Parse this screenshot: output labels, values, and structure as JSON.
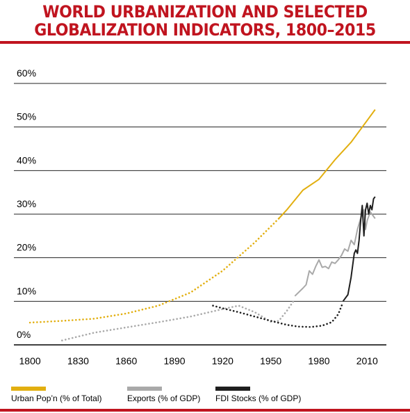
{
  "title_lines": [
    "WORLD URBANIZATION AND SELECTED",
    "GLOBALIZATION INDICATORS, 1800–2015"
  ],
  "colors": {
    "accent": "#c0141f",
    "urban": "#e2af10",
    "exports": "#a9a9a9",
    "fdi": "#1e1e1e"
  },
  "chart_data": {
    "type": "line",
    "title": "WORLD URBANIZATION AND SELECTED GLOBALIZATION INDICATORS, 1800–2015",
    "xlabel": "",
    "ylabel": "",
    "xlim": [
      1790,
      2022
    ],
    "ylim": [
      0,
      60
    ],
    "x_ticks": [
      1800,
      1830,
      1860,
      1890,
      1920,
      1950,
      1980,
      2010
    ],
    "y_ticks": [
      "0%",
      "10%",
      "20%",
      "30%",
      "40%",
      "50%",
      "60%"
    ],
    "y_tick_values": [
      0,
      10,
      20,
      30,
      40,
      50,
      60
    ],
    "grid": "horizontal",
    "legend_position": "bottom",
    "series": [
      {
        "name": "Urban Pop’n (% of Total)",
        "color_key": "urban",
        "segments": [
          {
            "style": "dotted",
            "points": [
              [
                1800,
                5.1
              ],
              [
                1820,
                5.5
              ],
              [
                1840,
                6.0
              ],
              [
                1860,
                7.2
              ],
              [
                1880,
                9.0
              ],
              [
                1900,
                12.0
              ],
              [
                1920,
                17.0
              ],
              [
                1940,
                23.5
              ],
              [
                1955,
                29.0
              ]
            ]
          },
          {
            "style": "solid",
            "points": [
              [
                1955,
                29.0
              ],
              [
                1960,
                31.0
              ],
              [
                1970,
                35.5
              ],
              [
                1980,
                38.0
              ],
              [
                1990,
                42.5
              ],
              [
                2000,
                46.5
              ],
              [
                2010,
                51.5
              ],
              [
                2015,
                54.0
              ]
            ]
          }
        ]
      },
      {
        "name": "Exports (% of GDP)",
        "color_key": "exports",
        "segments": [
          {
            "style": "dotted",
            "points": [
              [
                1820,
                1.0
              ],
              [
                1840,
                2.8
              ],
              [
                1860,
                4.0
              ],
              [
                1880,
                5.2
              ],
              [
                1900,
                6.5
              ],
              [
                1920,
                8.2
              ],
              [
                1930,
                9.0
              ],
              [
                1940,
                7.5
              ],
              [
                1950,
                5.3
              ],
              [
                1955,
                5.5
              ],
              [
                1960,
                7.8
              ],
              [
                1965,
                10.5
              ]
            ]
          },
          {
            "style": "solid",
            "points": [
              [
                1965,
                11.2
              ],
              [
                1970,
                13.0
              ],
              [
                1972,
                13.8
              ],
              [
                1974,
                17.0
              ],
              [
                1976,
                16.2
              ],
              [
                1978,
                18.0
              ],
              [
                1980,
                19.5
              ],
              [
                1982,
                17.8
              ],
              [
                1984,
                18.0
              ],
              [
                1986,
                17.5
              ],
              [
                1988,
                19.0
              ],
              [
                1990,
                18.7
              ],
              [
                1992,
                19.5
              ],
              [
                1994,
                20.5
              ],
              [
                1996,
                22.0
              ],
              [
                1998,
                21.5
              ],
              [
                2000,
                24.0
              ],
              [
                2002,
                23.0
              ],
              [
                2004,
                26.5
              ],
              [
                2006,
                29.0
              ],
              [
                2008,
                31.0
              ],
              [
                2009,
                26.5
              ],
              [
                2010,
                28.5
              ],
              [
                2012,
                30.5
              ],
              [
                2014,
                29.5
              ],
              [
                2015,
                29.0
              ]
            ]
          }
        ]
      },
      {
        "name": "FDI Stocks (% of GDP)",
        "color_key": "fdi",
        "segments": [
          {
            "style": "dotted",
            "points": [
              [
                1914,
                9.0
              ],
              [
                1920,
                8.4
              ],
              [
                1930,
                7.5
              ],
              [
                1940,
                6.5
              ],
              [
                1950,
                5.5
              ],
              [
                1960,
                4.6
              ],
              [
                1967,
                4.2
              ],
              [
                1975,
                4.1
              ],
              [
                1982,
                4.4
              ],
              [
                1988,
                5.2
              ],
              [
                1992,
                7.0
              ],
              [
                1995,
                9.8
              ]
            ]
          },
          {
            "style": "solid",
            "points": [
              [
                1995,
                10.0
              ],
              [
                1998,
                11.5
              ],
              [
                2000,
                15.5
              ],
              [
                2002,
                21.0
              ],
              [
                2003,
                21.8
              ],
              [
                2004,
                21.0
              ],
              [
                2005,
                24.0
              ],
              [
                2006,
                28.5
              ],
              [
                2007,
                32.0
              ],
              [
                2008,
                25.0
              ],
              [
                2009,
                31.0
              ],
              [
                2010,
                32.5
              ],
              [
                2011,
                30.0
              ],
              [
                2012,
                32.0
              ],
              [
                2013,
                31.0
              ],
              [
                2014,
                33.5
              ],
              [
                2015,
                34.0
              ]
            ]
          }
        ]
      }
    ]
  },
  "legend": [
    {
      "label": "Urban Pop’n (% of Total)",
      "color_key": "urban"
    },
    {
      "label": "Exports (% of GDP)",
      "color_key": "exports"
    },
    {
      "label": "FDI Stocks (% of GDP)",
      "color_key": "fdi"
    }
  ]
}
